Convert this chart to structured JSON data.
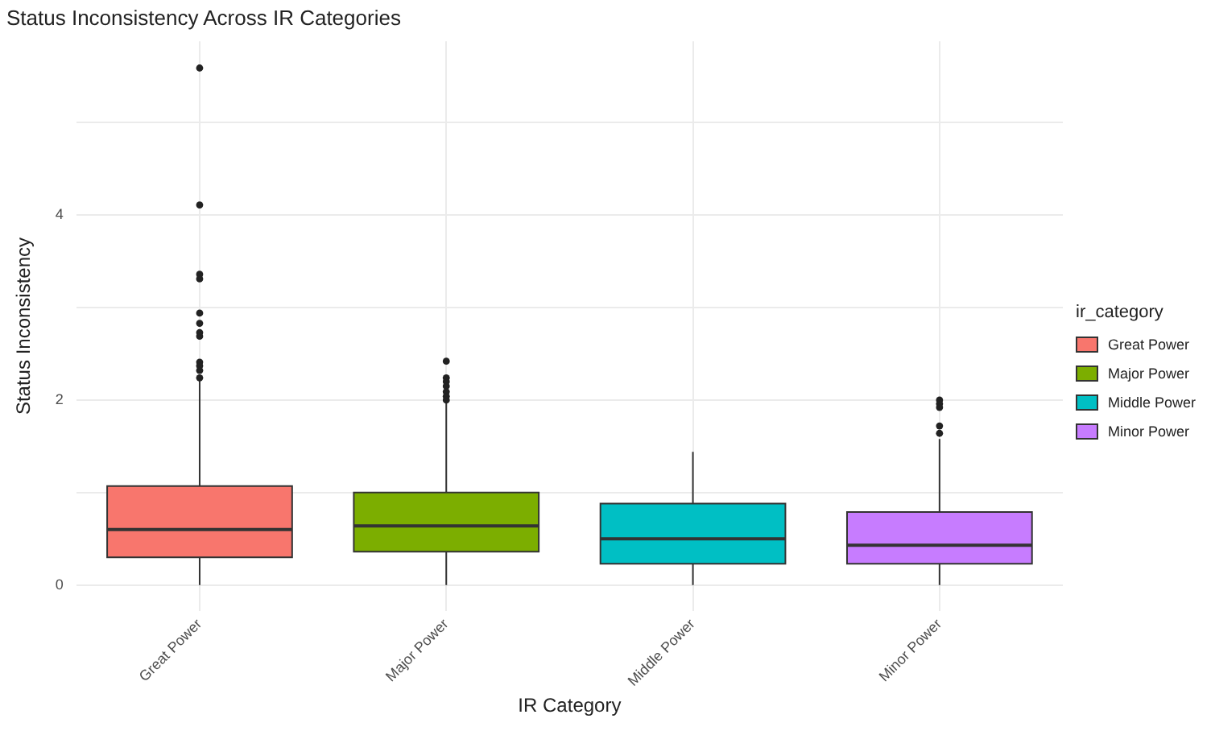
{
  "chart_data": {
    "type": "box",
    "title": "Status Inconsistency Across IR Categories",
    "xlabel": "IR Category",
    "ylabel": "Status Inconsistency",
    "legend_title": "ir_category",
    "categories": [
      "Great Power",
      "Major Power",
      "Middle Power",
      "Minor Power"
    ],
    "series": [
      {
        "name": "Great Power",
        "color": "#f8766d",
        "boxes": [
          {
            "low": 0,
            "q1": 0.3,
            "median": 0.6,
            "q3": 1.07,
            "high": 2.21,
            "outliers": [
              5.59,
              4.11,
              3.36,
              3.31,
              2.94,
              2.83,
              2.73,
              2.69,
              2.41,
              2.37,
              2.32,
              2.24
            ]
          },
          null,
          null,
          null
        ]
      },
      {
        "name": "Major Power",
        "color": "#7cae00",
        "boxes": [
          null,
          {
            "low": 0,
            "q1": 0.36,
            "median": 0.64,
            "q3": 1.0,
            "high": 1.98,
            "outliers": [
              2.42,
              2.24,
              2.2,
              2.15,
              2.09,
              2.04,
              2.0
            ]
          },
          null,
          null
        ]
      },
      {
        "name": "Middle Power",
        "color": "#00bfc4",
        "boxes": [
          null,
          null,
          {
            "low": 0,
            "q1": 0.23,
            "median": 0.5,
            "q3": 0.88,
            "high": 1.44
          },
          null
        ]
      },
      {
        "name": "Minor Power",
        "color": "#c77cff",
        "boxes": [
          null,
          null,
          null,
          {
            "low": 0,
            "q1": 0.23,
            "median": 0.43,
            "q3": 0.79,
            "high": 1.58,
            "outliers": [
              2.0,
              1.96,
              1.92,
              1.72,
              1.64
            ]
          }
        ]
      }
    ],
    "ylim": [
      -0.28,
      5.88
    ],
    "yticks": [
      0,
      {
        "value": 1,
        "label": null
      },
      2,
      {
        "value": 3,
        "label": null
      },
      4,
      {
        "value": 5,
        "label": null
      }
    ],
    "grid": true,
    "legend": "right"
  }
}
